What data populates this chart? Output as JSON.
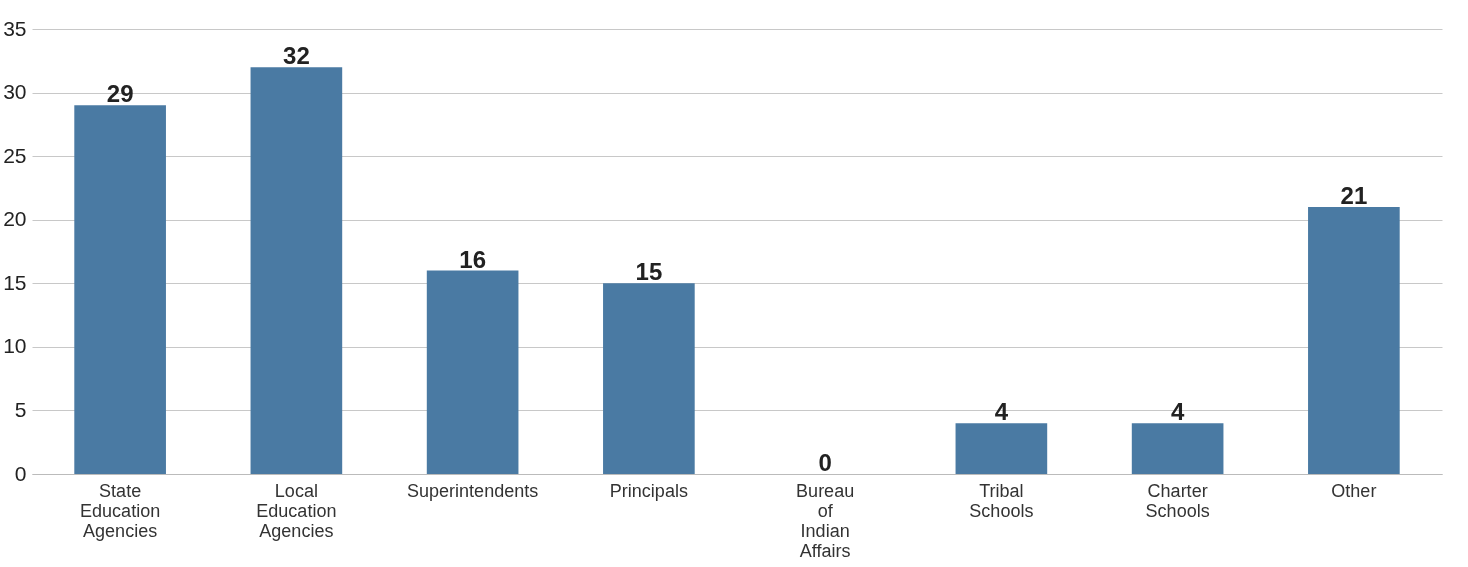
{
  "chart_data": {
    "type": "bar",
    "categories": [
      "State Education Agencies",
      "Local Education Agencies",
      "Superintendents",
      "Principals",
      "Bureau of Indian Affairs",
      "Tribal Schools",
      "Charter Schools",
      "Other"
    ],
    "values": [
      29,
      32,
      16,
      15,
      0,
      4,
      4,
      21
    ],
    "color": "#4a7aa3",
    "ylim": [
      0,
      35
    ],
    "yticks": [
      0,
      5,
      10,
      15,
      20,
      25,
      30,
      35
    ],
    "grid": "y",
    "data_labels": true
  }
}
